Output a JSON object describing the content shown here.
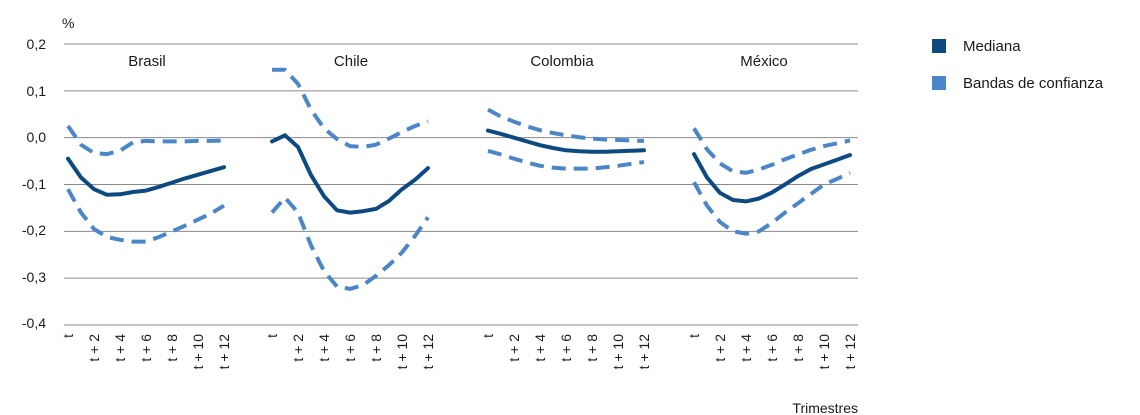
{
  "chart_data": {
    "type": "line",
    "ylabel": "%",
    "xlabel": "Trimestres",
    "ylim": [
      -0.4,
      0.2
    ],
    "y_ticks": [
      "0,2",
      "0,1",
      "0,0",
      "-0,1",
      "-0,2",
      "-0,3",
      "-0,4"
    ],
    "grid": true,
    "legend_position": "top-right",
    "x_tick_labels": [
      "t",
      "t + 2",
      "t + 4",
      "t + 6",
      "t + 8",
      "t + 10",
      "t + 12"
    ],
    "colors": {
      "mediana": "#0d4a82",
      "bandas": "#4a86c8"
    },
    "legend": [
      {
        "label": "Mediana",
        "color": "#0d4a82"
      },
      {
        "label": "Bandas de confianza",
        "color": "#4a86c8"
      }
    ],
    "panels": [
      {
        "title": "Brasil",
        "x": [
          0,
          1,
          2,
          3,
          4,
          5,
          6,
          7,
          8,
          9,
          10,
          11,
          12
        ],
        "series": [
          {
            "name": "Mediana",
            "values": [
              -0.045,
              -0.085,
              -0.11,
              -0.122,
              -0.121,
              -0.116,
              -0.113,
              -0.105,
              -0.096,
              -0.087,
              -0.079,
              -0.071,
              -0.063
            ]
          },
          {
            "name": "Bandas de confianza",
            "values": [
              0.025,
              -0.015,
              -0.033,
              -0.035,
              -0.028,
              -0.01,
              -0.007,
              -0.008,
              -0.008,
              -0.008,
              -0.007,
              -0.007,
              -0.006
            ]
          },
          {
            "name": "Bandas de confianza",
            "values": [
              -0.11,
              -0.16,
              -0.195,
              -0.212,
              -0.218,
              -0.222,
              -0.222,
              -0.212,
              -0.2,
              -0.188,
              -0.175,
              -0.162,
              -0.145
            ]
          }
        ]
      },
      {
        "title": "Chile",
        "x": [
          0,
          1,
          2,
          3,
          4,
          5,
          6,
          7,
          8,
          9,
          10,
          11,
          12
        ],
        "series": [
          {
            "name": "Mediana",
            "values": [
              -0.008,
              0.005,
              -0.02,
              -0.08,
              -0.125,
              -0.155,
              -0.16,
              -0.157,
              -0.152,
              -0.135,
              -0.11,
              -0.09,
              -0.065
            ]
          },
          {
            "name": "Bandas de confianza",
            "values": [
              0.145,
              0.145,
              0.115,
              0.06,
              0.02,
              -0.003,
              -0.018,
              -0.02,
              -0.015,
              -0.002,
              0.012,
              0.025,
              0.035
            ]
          },
          {
            "name": "Bandas de confianza",
            "values": [
              -0.16,
              -0.128,
              -0.16,
              -0.23,
              -0.285,
              -0.318,
              -0.323,
              -0.315,
              -0.295,
              -0.272,
              -0.245,
              -0.21,
              -0.17
            ]
          }
        ]
      },
      {
        "title": "Colombia",
        "x": [
          0,
          1,
          2,
          3,
          4,
          5,
          6,
          7,
          8,
          9,
          10,
          11,
          12
        ],
        "series": [
          {
            "name": "Mediana",
            "values": [
              0.015,
              0.008,
              0,
              -0.008,
              -0.016,
              -0.022,
              -0.027,
              -0.029,
              -0.03,
              -0.03,
              -0.029,
              -0.028,
              -0.027
            ]
          },
          {
            "name": "Bandas de confianza",
            "values": [
              0.06,
              0.045,
              0.034,
              0.024,
              0.016,
              0.01,
              0.005,
              0.001,
              -0.002,
              -0.004,
              -0.005,
              -0.006,
              -0.007
            ]
          },
          {
            "name": "Bandas de confianza",
            "values": [
              -0.028,
              -0.036,
              -0.045,
              -0.053,
              -0.06,
              -0.064,
              -0.066,
              -0.066,
              -0.066,
              -0.063,
              -0.06,
              -0.056,
              -0.052
            ]
          }
        ]
      },
      {
        "title": "México",
        "x": [
          0,
          1,
          2,
          3,
          4,
          5,
          6,
          7,
          8,
          9,
          10,
          11,
          12
        ],
        "series": [
          {
            "name": "Mediana",
            "values": [
              -0.035,
              -0.085,
              -0.118,
              -0.133,
              -0.136,
              -0.13,
              -0.117,
              -0.1,
              -0.082,
              -0.067,
              -0.057,
              -0.047,
              -0.037
            ]
          },
          {
            "name": "Bandas de confianza",
            "values": [
              0.02,
              -0.025,
              -0.055,
              -0.072,
              -0.075,
              -0.068,
              -0.058,
              -0.046,
              -0.036,
              -0.026,
              -0.018,
              -0.012,
              -0.006
            ]
          },
          {
            "name": "Bandas de confianza",
            "values": [
              -0.095,
              -0.145,
              -0.18,
              -0.2,
              -0.205,
              -0.2,
              -0.182,
              -0.16,
              -0.14,
              -0.12,
              -0.1,
              -0.088,
              -0.075
            ]
          }
        ]
      }
    ]
  }
}
